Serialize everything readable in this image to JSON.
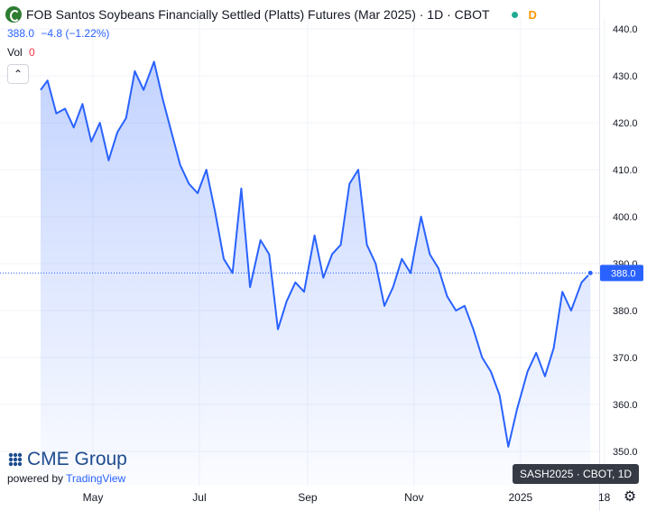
{
  "header": {
    "title": "FOB Santos Soybeans Financially Settled (Platts) Futures (Mar 2025) · 1D · CBOT",
    "status_letter": "D",
    "price_label": "388.0",
    "change_label": "−4.8 (−1.22%)",
    "vol_label": "Vol",
    "vol_value": "0"
  },
  "branding": {
    "logo_text": "CME Group",
    "powered_by": "powered by",
    "powered_by_brand": "TradingView"
  },
  "tooltip": {
    "series_label": "SASH2025 · CBOT, 1D"
  },
  "colors": {
    "line": "#2962ff",
    "area": "#2962ff",
    "price_tag": "#2962ff",
    "up_dot": "#22ab94",
    "status": "#ff9800"
  },
  "chart_data": {
    "type": "area",
    "symbol": "SASH2025",
    "ylim": [
      347,
      444
    ],
    "y_ticks": [
      350,
      360,
      370,
      380,
      390,
      400,
      410,
      420,
      430,
      440
    ],
    "y_tick_labels": [
      "350.0",
      "360.0",
      "370.0",
      "380.0",
      "390.0",
      "400.0",
      "410.0",
      "420.0",
      "430.0",
      "440.0"
    ],
    "x_tick_labels": [
      "May",
      "Jul",
      "Sep",
      "Nov",
      "2025",
      "18"
    ],
    "last_price": 388.0,
    "last_price_label": "388.0",
    "x": [
      "2024-04-01",
      "2024-04-05",
      "2024-04-10",
      "2024-04-15",
      "2024-04-20",
      "2024-04-25",
      "2024-04-30",
      "2024-05-05",
      "2024-05-10",
      "2024-05-15",
      "2024-05-20",
      "2024-05-25",
      "2024-05-30",
      "2024-06-05",
      "2024-06-10",
      "2024-06-15",
      "2024-06-20",
      "2024-06-25",
      "2024-06-30",
      "2024-07-05",
      "2024-07-10",
      "2024-07-15",
      "2024-07-20",
      "2024-07-25",
      "2024-07-30",
      "2024-08-05",
      "2024-08-10",
      "2024-08-15",
      "2024-08-20",
      "2024-08-25",
      "2024-08-30",
      "2024-09-05",
      "2024-09-10",
      "2024-09-15",
      "2024-09-20",
      "2024-09-25",
      "2024-09-30",
      "2024-10-05",
      "2024-10-10",
      "2024-10-15",
      "2024-10-20",
      "2024-10-25",
      "2024-10-30",
      "2024-11-05",
      "2024-11-10",
      "2024-11-15",
      "2024-11-20",
      "2024-11-25",
      "2024-11-30",
      "2024-12-05",
      "2024-12-10",
      "2024-12-15",
      "2024-12-20",
      "2024-12-25",
      "2024-12-30",
      "2025-01-05",
      "2025-01-10",
      "2025-01-15",
      "2025-01-20",
      "2025-01-25",
      "2025-01-30",
      "2025-02-05",
      "2025-02-10"
    ],
    "values": [
      427,
      429,
      422,
      423,
      419,
      424,
      416,
      420,
      412,
      418,
      421,
      431,
      427,
      433,
      425,
      418,
      411,
      407,
      405,
      410,
      401,
      391,
      388,
      406,
      385,
      395,
      392,
      376,
      382,
      386,
      384,
      396,
      387,
      392,
      394,
      407,
      410,
      394,
      390,
      381,
      385,
      391,
      388,
      400,
      392,
      389,
      383,
      380,
      381,
      376,
      370,
      367,
      362,
      351,
      359,
      367,
      371,
      366,
      372,
      384,
      380,
      386,
      388
    ]
  }
}
